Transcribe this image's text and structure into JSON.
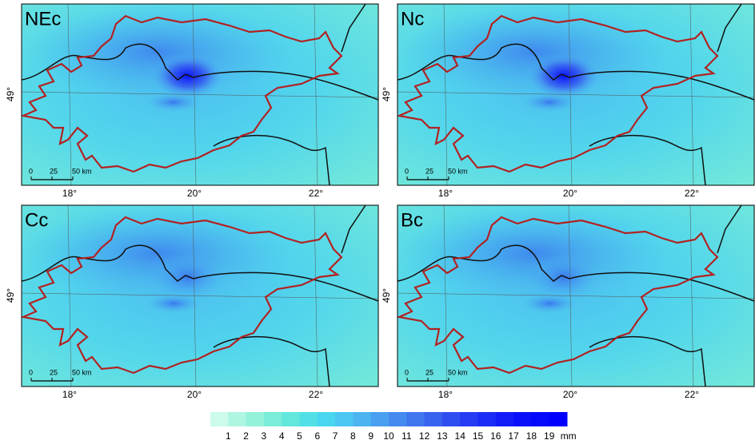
{
  "panels": [
    {
      "label": "NEc",
      "y_tick": "49°",
      "x_ticks": [
        "18°",
        "20°",
        "22°"
      ],
      "scale": [
        "0",
        "25",
        "50 km"
      ]
    },
    {
      "label": "Nc",
      "y_tick": "49°",
      "x_ticks": [
        "18°",
        "20°",
        "22°"
      ],
      "scale": [
        "0",
        "25",
        "50 km"
      ]
    },
    {
      "label": "Cc",
      "y_tick": "49°",
      "x_ticks": [
        "18°",
        "20°",
        "22°"
      ],
      "scale": [
        "0",
        "25",
        "50 km"
      ]
    },
    {
      "label": "Bc",
      "y_tick": "49°",
      "x_ticks": [
        "18°",
        "20°",
        "22°"
      ],
      "scale": [
        "0",
        "25",
        "50 km"
      ]
    }
  ],
  "colorbar": {
    "ticks": [
      1,
      2,
      3,
      4,
      5,
      6,
      7,
      8,
      9,
      10,
      11,
      12,
      13,
      14,
      15,
      16,
      17,
      18,
      19
    ],
    "unit": "mm",
    "colors": [
      "#ccfbec",
      "#aef6e2",
      "#94f1da",
      "#7aecd8",
      "#63e6dc",
      "#52e0e6",
      "#48d6f0",
      "#4cc6f2",
      "#4cb4f0",
      "#4aa0f0",
      "#458bef",
      "#3f76ee",
      "#3862f0",
      "#2f4ef2",
      "#253cf4",
      "#1b2cf6",
      "#121cf8",
      "#0a10fa",
      "#0408fd",
      "#0000ff"
    ]
  }
}
